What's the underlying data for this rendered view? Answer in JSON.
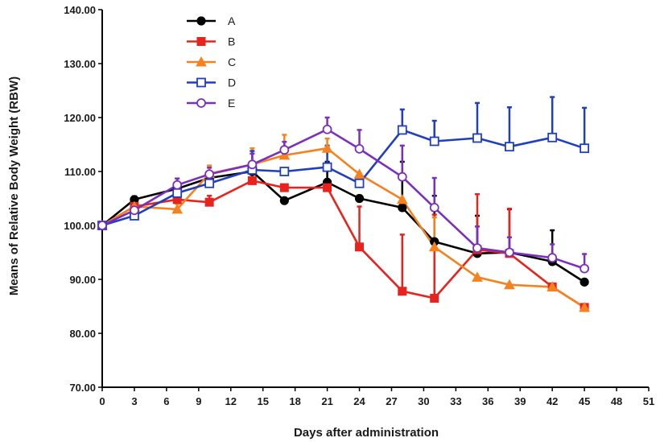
{
  "chart_data": {
    "type": "line",
    "title": "",
    "xlabel": "Days after administration",
    "ylabel": "Means of Relative Body Weight (RBW)",
    "xlim": [
      0,
      51
    ],
    "ylim": [
      70,
      140
    ],
    "x_ticks": [
      0,
      3,
      6,
      9,
      12,
      15,
      18,
      21,
      24,
      27,
      30,
      33,
      36,
      39,
      42,
      45,
      48,
      51
    ],
    "x_tick_labels": [
      "0",
      "3",
      "6",
      "9",
      "12",
      "15",
      "18",
      "21",
      "24",
      "27",
      "30",
      "33",
      "36",
      "39",
      "42",
      "45",
      "48",
      "51"
    ],
    "y_ticks": [
      70,
      80,
      90,
      100,
      110,
      120,
      130,
      140
    ],
    "y_tick_labels": [
      "70.00",
      "80.00",
      "90.00",
      "100.00",
      "110.00",
      "120.00",
      "130.00",
      "140.00"
    ],
    "legend_position": "top-left",
    "series": [
      {
        "name": "A",
        "color": "#000000",
        "marker": "filled-circle",
        "x": [
          0,
          3,
          7,
          10,
          14,
          17,
          21,
          24,
          28,
          31,
          35,
          38,
          42,
          45
        ],
        "y": [
          100,
          104.8,
          106.8,
          108.8,
          110,
          104.6,
          108,
          105,
          103.3,
          97,
          94.8,
          95,
          93.3,
          89.5
        ],
        "err": [
          0,
          0.6,
          1.3,
          1.2,
          1.6,
          0,
          3.8,
          0,
          8.5,
          8.5,
          7,
          8,
          5.8,
          0
        ]
      },
      {
        "name": "B",
        "color": "#e8231e",
        "marker": "filled-square",
        "x": [
          0,
          3,
          7,
          10,
          14,
          17,
          21,
          24,
          28,
          31,
          35,
          38,
          42,
          45
        ],
        "y": [
          100,
          103.5,
          104.8,
          104.3,
          108.3,
          107,
          107,
          96,
          87.8,
          86.5,
          95.5,
          94.8,
          88.6,
          84.8
        ],
        "err": [
          0,
          0.5,
          0.8,
          1.2,
          1.5,
          0,
          0,
          7.5,
          10.5,
          15.5,
          10.3,
          8.3,
          0,
          0
        ]
      },
      {
        "name": "C",
        "color": "#f5821f",
        "marker": "filled-triangle",
        "x": [
          0,
          3,
          7,
          10,
          14,
          17,
          21,
          24,
          28,
          31,
          35,
          38,
          42,
          45
        ],
        "y": [
          100,
          103.5,
          103,
          109.6,
          111.3,
          113,
          114.3,
          109.5,
          104.8,
          96,
          90.4,
          89,
          88.6,
          84.8
        ],
        "err": [
          0,
          0.6,
          1,
          1.5,
          3,
          3.8,
          1.8,
          0,
          0,
          5.5,
          0,
          0,
          0,
          0
        ]
      },
      {
        "name": "D",
        "color": "#1f3fbf",
        "marker": "open-square",
        "x": [
          0,
          3,
          7,
          10,
          14,
          17,
          21,
          24,
          28,
          31,
          35,
          38,
          42,
          45
        ],
        "y": [
          100,
          101.8,
          106,
          107.8,
          110.3,
          110,
          110.8,
          107.8,
          117.7,
          115.6,
          116.2,
          114.6,
          116.3,
          114.3
        ],
        "err": [
          0,
          0.6,
          1,
          1.2,
          3.5,
          0,
          4,
          0,
          3.8,
          3.8,
          6.5,
          7.3,
          7.5,
          7.5
        ]
      },
      {
        "name": "E",
        "color": "#7b2fbe",
        "marker": "open-circle",
        "x": [
          0,
          3,
          7,
          10,
          14,
          17,
          21,
          24,
          28,
          31,
          35,
          38,
          42,
          45
        ],
        "y": [
          100,
          102.8,
          107.5,
          109.5,
          111.3,
          114,
          117.8,
          114.2,
          109,
          103.3,
          95.8,
          95,
          94,
          92
        ],
        "err": [
          0,
          0.6,
          1.2,
          1.2,
          2,
          1.5,
          2.2,
          3.5,
          5.8,
          5.5,
          4,
          2.8,
          2.5,
          2.7
        ]
      }
    ]
  }
}
